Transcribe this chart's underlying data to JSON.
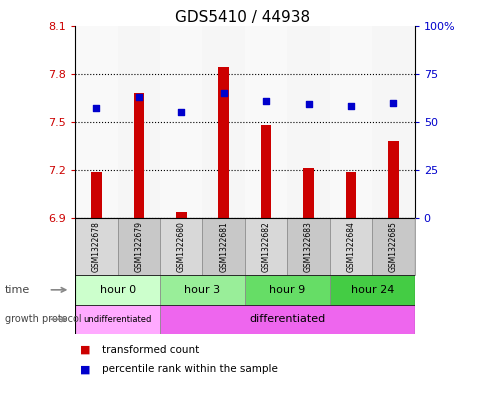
{
  "title": "GDS5410 / 44938",
  "samples": [
    "GSM1322678",
    "GSM1322679",
    "GSM1322680",
    "GSM1322681",
    "GSM1322682",
    "GSM1322683",
    "GSM1322684",
    "GSM1322685"
  ],
  "transformed_count": [
    7.19,
    7.68,
    6.94,
    7.84,
    7.48,
    7.21,
    7.19,
    7.38
  ],
  "percentile_rank": [
    57,
    63,
    55,
    65,
    61,
    59,
    58,
    60
  ],
  "ylim_left": [
    6.9,
    8.1
  ],
  "ylim_right": [
    0,
    100
  ],
  "yticks_left": [
    6.9,
    7.2,
    7.5,
    7.8,
    8.1
  ],
  "yticks_right": [
    0,
    25,
    50,
    75,
    100
  ],
  "ytick_labels_left": [
    "6.9",
    "7.2",
    "7.5",
    "7.8",
    "8.1"
  ],
  "ytick_labels_right": [
    "0",
    "25",
    "50",
    "75",
    "100%"
  ],
  "bar_color": "#cc0000",
  "dot_color": "#0000cc",
  "bar_bottom": 6.9,
  "bar_width": 0.25,
  "time_groups": [
    {
      "label": "hour 0",
      "start": 0,
      "end": 1,
      "color": "#ccffcc"
    },
    {
      "label": "hour 3",
      "start": 2,
      "end": 3,
      "color": "#99ee99"
    },
    {
      "label": "hour 9",
      "start": 4,
      "end": 5,
      "color": "#66dd66"
    },
    {
      "label": "hour 24",
      "start": 6,
      "end": 7,
      "color": "#44cc44"
    }
  ],
  "protocol_undiff_color": "#ffaaff",
  "protocol_diff_color": "#ee66ee",
  "legend_items": [
    {
      "label": "transformed count",
      "color": "#cc0000"
    },
    {
      "label": "percentile rank within the sample",
      "color": "#0000cc"
    }
  ],
  "sample_col_odd": "#c8c8c8",
  "sample_col_even": "#d8d8d8",
  "left_label_color": "#cc0000",
  "right_label_color": "#0000cc"
}
